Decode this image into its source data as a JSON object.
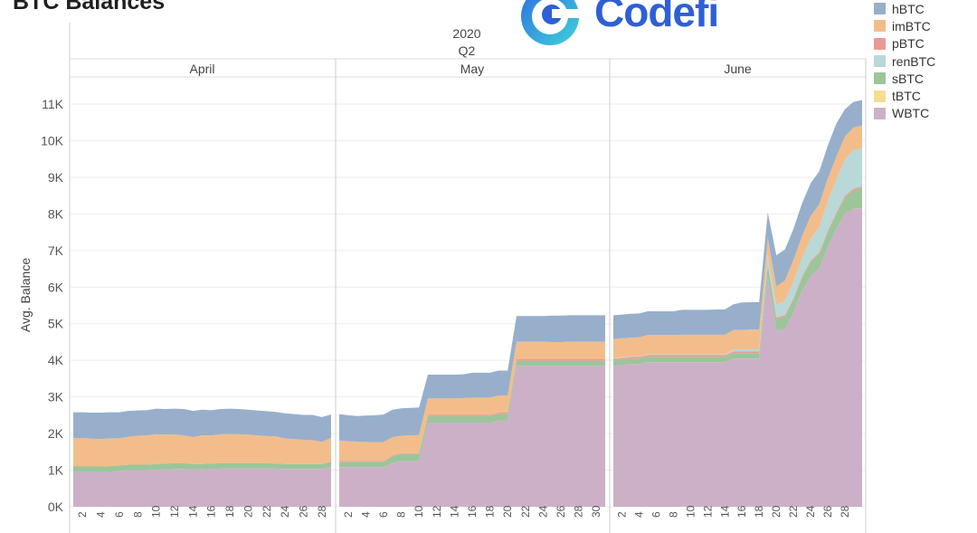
{
  "title": "BTC Balances",
  "logo": {
    "text": "Codefi",
    "icon": "codefi-logo-icon"
  },
  "header": {
    "year": "2020",
    "quarter": "Q2"
  },
  "legend": [
    {
      "label": "hBTC",
      "color": "#97afcb"
    },
    {
      "label": "imBTC",
      "color": "#f2bd8b"
    },
    {
      "label": "pBTC",
      "color": "#e99a97"
    },
    {
      "label": "renBTC",
      "color": "#b9d8d8"
    },
    {
      "label": "sBTC",
      "color": "#9cc59a"
    },
    {
      "label": "tBTC",
      "color": "#f6dd93"
    },
    {
      "label": "WBTC",
      "color": "#ccb0c8"
    }
  ],
  "chart_data": {
    "type": "area",
    "stacked": true,
    "ylabel": "Avg. Balance",
    "ylim": [
      0,
      11300
    ],
    "yticks": [
      0,
      1000,
      2000,
      3000,
      4000,
      5000,
      6000,
      7000,
      8000,
      9000,
      10000,
      11000
    ],
    "ytick_labels": [
      "0K",
      "1K",
      "2K",
      "3K",
      "4K",
      "5K",
      "6K",
      "7K",
      "8K",
      "9K",
      "10K",
      "11K"
    ],
    "grid": true,
    "legend_position": "top-right",
    "series_order": [
      "WBTC",
      "tBTC",
      "sBTC",
      "renBTC",
      "pBTC",
      "imBTC",
      "hBTC"
    ],
    "panels": [
      {
        "month": "April",
        "days": 29,
        "xtick_labels": [
          "2",
          "4",
          "6",
          "8",
          "10",
          "12",
          "14",
          "16",
          "18",
          "20",
          "22",
          "24",
          "26",
          "28"
        ],
        "series": [
          {
            "name": "WBTC",
            "values": [
              950,
              950,
              950,
              950,
              950,
              980,
              1000,
              1000,
              1000,
              1010,
              1020,
              1030,
              1030,
              1020,
              1020,
              1030,
              1040,
              1040,
              1040,
              1040,
              1040,
              1040,
              1040,
              1030,
              1030,
              1030,
              1030,
              1030,
              1080
            ]
          },
          {
            "name": "sBTC",
            "values": [
              150,
              150,
              150,
              150,
              160,
              150,
              150,
              150,
              150,
              160,
              160,
              160,
              160,
              150,
              150,
              150,
              150,
              150,
              150,
              150,
              150,
              150,
              140,
              140,
              140,
              140,
              140,
              140,
              150
            ]
          },
          {
            "name": "imBTC",
            "values": [
              770,
              780,
              760,
              750,
              760,
              740,
              760,
              790,
              800,
              810,
              790,
              780,
              760,
              730,
              780,
              770,
              790,
              800,
              790,
              780,
              760,
              740,
              740,
              700,
              680,
              660,
              650,
              600,
              650
            ]
          },
          {
            "name": "hBTC",
            "values": [
              710,
              700,
              710,
              720,
              710,
              710,
              710,
              690,
              690,
              700,
              700,
              710,
              720,
              720,
              700,
              690,
              690,
              690,
              690,
              680,
              680,
              680,
              670,
              680,
              680,
              680,
              690,
              680,
              640
            ]
          }
        ]
      },
      {
        "month": "May",
        "days": 31,
        "xtick_labels": [
          "2",
          "4",
          "6",
          "8",
          "10",
          "12",
          "14",
          "16",
          "18",
          "20",
          "22",
          "24",
          "26",
          "28",
          "30"
        ],
        "series": [
          {
            "name": "WBTC",
            "values": [
              1080,
              1080,
              1080,
              1080,
              1080,
              1080,
              1200,
              1250,
              1250,
              1250,
              2300,
              2300,
              2300,
              2300,
              2300,
              2300,
              2300,
              2300,
              2350,
              2350,
              3850,
              3850,
              3850,
              3850,
              3850,
              3850,
              3850,
              3850,
              3850,
              3850,
              3850
            ]
          },
          {
            "name": "sBTC",
            "values": [
              150,
              150,
              150,
              150,
              150,
              150,
              180,
              190,
              190,
              190,
              180,
              180,
              180,
              180,
              180,
              180,
              180,
              180,
              190,
              190,
              140,
              140,
              140,
              140,
              140,
              140,
              140,
              140,
              140,
              140,
              140
            ]
          },
          {
            "name": "pBTC",
            "values": [
              20,
              20,
              20,
              20,
              20,
              20,
              20,
              20,
              20,
              20,
              30,
              30,
              30,
              30,
              30,
              30,
              30,
              30,
              30,
              30,
              40,
              40,
              40,
              40,
              40,
              40,
              40,
              40,
              40,
              40,
              40
            ]
          },
          {
            "name": "imBTC",
            "values": [
              560,
              540,
              530,
              520,
              510,
              520,
              500,
              480,
              490,
              500,
              450,
              450,
              450,
              450,
              460,
              470,
              470,
              470,
              470,
              470,
              480,
              480,
              480,
              480,
              470,
              470,
              480,
              480,
              480,
              480,
              480
            ]
          },
          {
            "name": "hBTC",
            "values": [
              720,
              710,
              700,
              720,
              740,
              750,
              750,
              750,
              750,
              750,
              650,
              650,
              650,
              650,
              650,
              680,
              680,
              680,
              680,
              680,
              700,
              700,
              700,
              700,
              720,
              720,
              720,
              720,
              720,
              720,
              720
            ]
          }
        ]
      },
      {
        "month": "June",
        "days": 30,
        "xtick_labels": [
          "2",
          "4",
          "6",
          "8",
          "10",
          "12",
          "14",
          "16",
          "18",
          "20",
          "22",
          "24",
          "26",
          "28"
        ],
        "series": [
          {
            "name": "WBTC",
            "values": [
              3850,
              3870,
              3900,
              3900,
              3950,
              3950,
              3950,
              3950,
              3950,
              3950,
              3950,
              3950,
              3950,
              3950,
              4050,
              4050,
              4050,
              4050,
              6300,
              4800,
              4850,
              5300,
              5900,
              6300,
              6500,
              7100,
              7600,
              8000,
              8150,
              8150
            ]
          },
          {
            "name": "sBTC",
            "values": [
              150,
              150,
              150,
              150,
              150,
              150,
              150,
              150,
              150,
              150,
              150,
              150,
              150,
              150,
              150,
              150,
              150,
              150,
              300,
              330,
              340,
              350,
              350,
              380,
              400,
              400,
              400,
              450,
              500,
              550
            ]
          },
          {
            "name": "pBTC",
            "values": [
              40,
              40,
              40,
              40,
              40,
              40,
              40,
              40,
              40,
              40,
              40,
              40,
              40,
              40,
              40,
              40,
              40,
              40,
              40,
              40,
              40,
              40,
              40,
              40,
              40,
              40,
              40,
              40,
              40,
              40
            ]
          },
          {
            "name": "renBTC",
            "values": [
              20,
              20,
              20,
              20,
              20,
              20,
              20,
              20,
              20,
              20,
              20,
              20,
              20,
              20,
              60,
              60,
              60,
              60,
              250,
              350,
              400,
              450,
              500,
              600,
              700,
              800,
              900,
              1000,
              1050,
              1050
            ]
          },
          {
            "name": "imBTC",
            "values": [
              520,
              520,
              510,
              520,
              530,
              530,
              530,
              530,
              540,
              540,
              540,
              540,
              540,
              540,
              530,
              530,
              540,
              540,
              450,
              500,
              550,
              600,
              600,
              620,
              620,
              630,
              630,
              620,
              620,
              620
            ]
          },
          {
            "name": "hBTC",
            "values": [
              650,
              650,
              650,
              650,
              650,
              650,
              650,
              650,
              680,
              680,
              680,
              680,
              690,
              690,
              700,
              750,
              750,
              750,
              700,
              850,
              850,
              850,
              900,
              900,
              900,
              900,
              900,
              750,
              700,
              700
            ]
          }
        ]
      }
    ]
  }
}
